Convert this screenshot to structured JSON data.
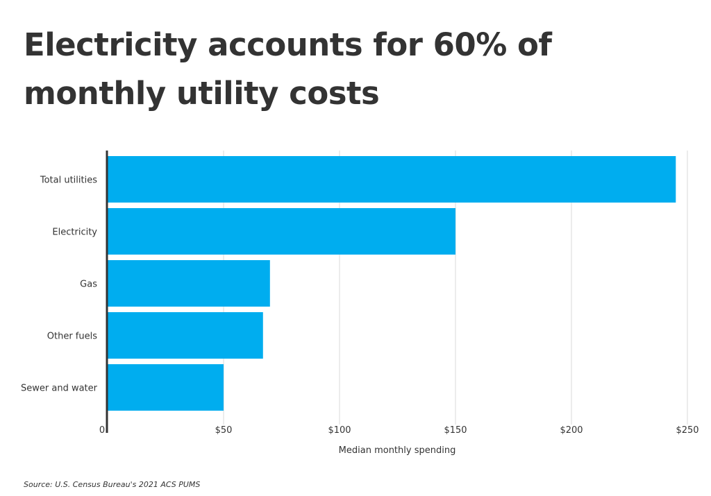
{
  "title": "Electricity accounts for 60% of monthly utility costs",
  "source": "Source:  U.S. Census Bureau's 2021 ACS PUMS",
  "colors": {
    "bar": "#00adef",
    "grid": "#d9d9d9",
    "axis": "#333333",
    "text": "#333333"
  },
  "chart_data": {
    "type": "bar",
    "orientation": "horizontal",
    "categories": [
      "Total utilities",
      "Electricity",
      "Gas",
      "Other fuels",
      "Sewer and water"
    ],
    "values": [
      245,
      150,
      70,
      67,
      50
    ],
    "xlabel": "Median monthly spending",
    "ylabel": "",
    "xlim": [
      0,
      250
    ],
    "ticks": [
      0,
      50,
      100,
      150,
      200,
      250
    ],
    "tick_labels": [
      "0",
      "$50",
      "$100",
      "$150",
      "$200",
      "$250"
    ],
    "grid": true
  }
}
